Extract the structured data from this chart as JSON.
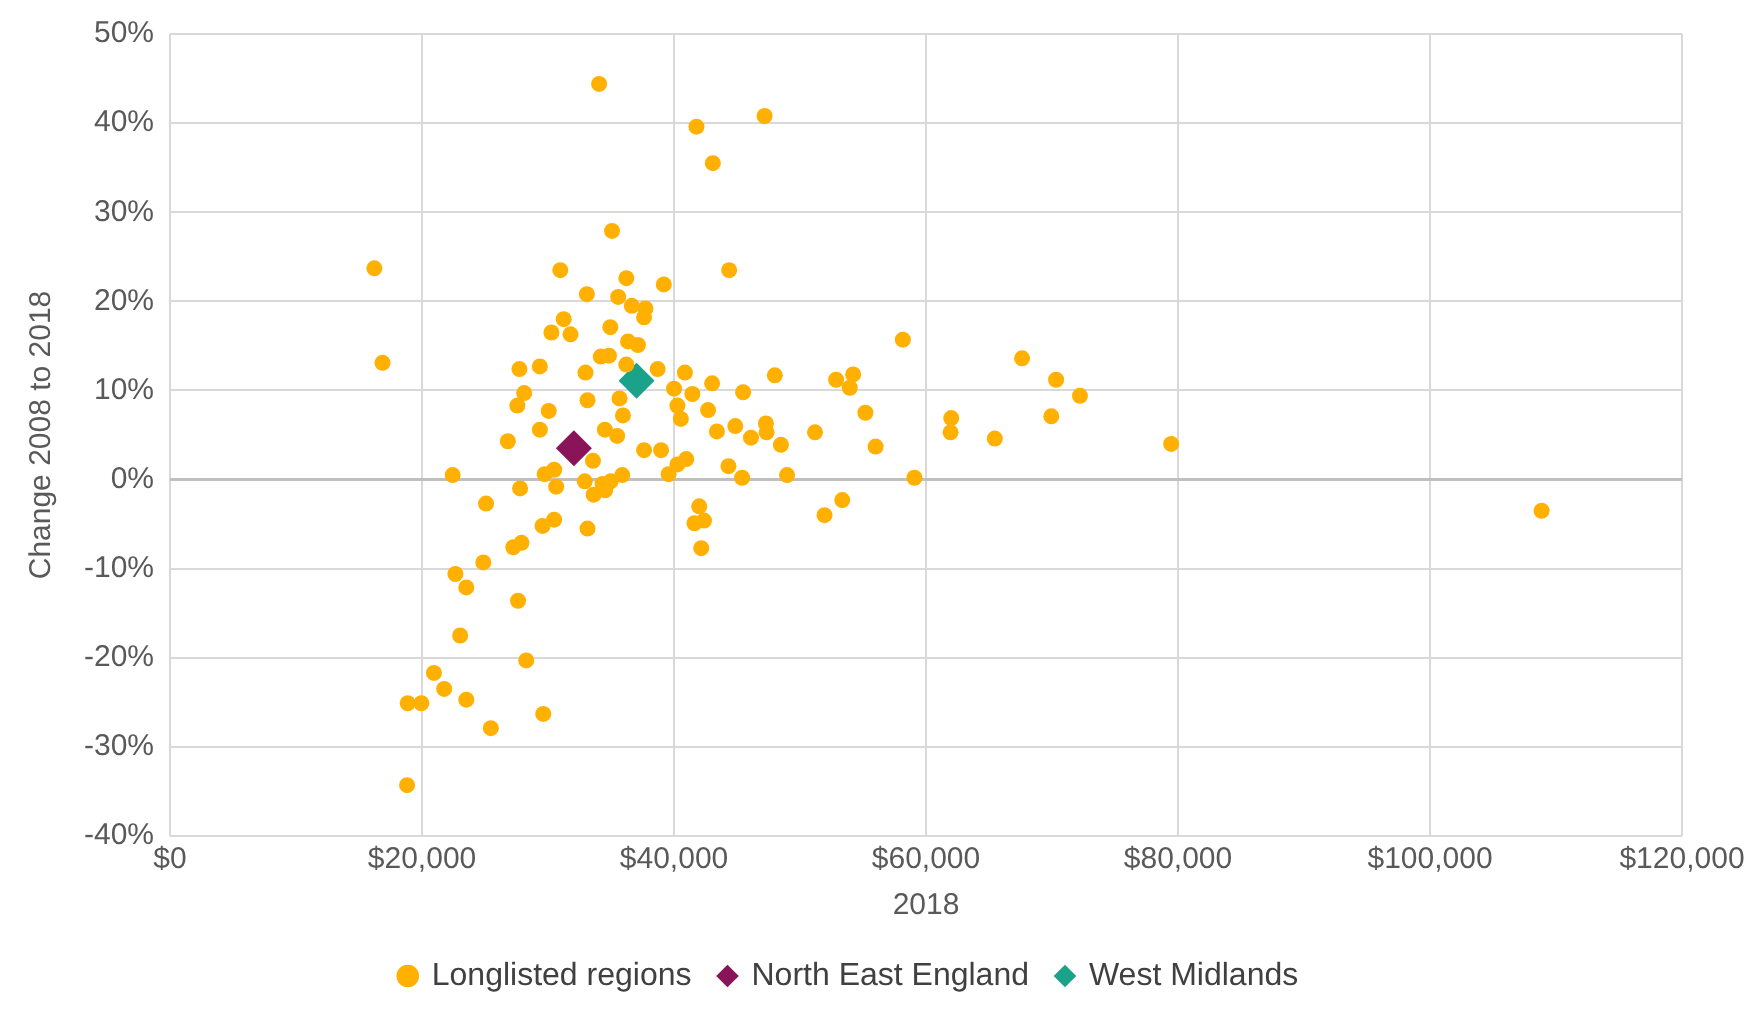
{
  "chart_data": {
    "type": "scatter",
    "xlabel": "2018",
    "ylabel": "Change 2008 to 2018",
    "xlim": [
      0,
      120000
    ],
    "xticks": [
      {
        "value": 0,
        "label": "$0"
      },
      {
        "value": 20000,
        "label": "$20,000"
      },
      {
        "value": 40000,
        "label": "$40,000"
      },
      {
        "value": 60000,
        "label": "$60,000"
      },
      {
        "value": 80000,
        "label": "$80,000"
      },
      {
        "value": 100000,
        "label": "$100,000"
      },
      {
        "value": 120000,
        "label": "$120,000"
      }
    ],
    "ylim": [
      -40,
      50
    ],
    "yticks": [
      {
        "value": -40,
        "label": "-40%"
      },
      {
        "value": -30,
        "label": "-30%"
      },
      {
        "value": -20,
        "label": "-20%"
      },
      {
        "value": -10,
        "label": "-10%"
      },
      {
        "value": 0,
        "label": "0%"
      },
      {
        "value": 10,
        "label": "10%"
      },
      {
        "value": 20,
        "label": "20%"
      },
      {
        "value": 30,
        "label": "30%"
      },
      {
        "value": 40,
        "label": "40%"
      },
      {
        "value": 50,
        "label": "50%"
      }
    ],
    "grid": true,
    "legend": "bottom",
    "series": [
      {
        "name": "Longlisted regions",
        "color": "#ffb000",
        "marker": "circle",
        "x": [
          34053,
          41782,
          47187,
          43079,
          35080,
          16216,
          30972,
          44376,
          36216,
          39188,
          33081,
          35567,
          36648,
          37729,
          37621,
          31243,
          30270,
          31784,
          34944,
          36350,
          37135,
          16865,
          34188,
          34837,
          27729,
          29351,
          32973,
          36216,
          38700,
          40863,
          43025,
          47998,
          28107,
          33135,
          35675,
          40000,
          41457,
          45484,
          27567,
          30054,
          35945,
          29351,
          40270,
          40540,
          42701,
          43403,
          44862,
          47295,
          47349,
          46106,
          48484,
          34512,
          35486,
          26810,
          33567,
          37621,
          38972,
          40972,
          40270,
          39568,
          44321,
          45403,
          48970,
          22432,
          29730,
          30486,
          30648,
          32919,
          34324,
          34972,
          35891,
          33621,
          34540,
          27783,
          25080,
          42000,
          41620,
          42377,
          42160,
          30486,
          29567,
          33135,
          27892,
          27242,
          24864,
          22648,
          23513,
          27621,
          23027,
          28270,
          20946,
          21757,
          23513,
          18865,
          19946,
          25459,
          29621,
          18811,
          58162,
          67621,
          70324,
          72216,
          69945,
          62000,
          61946,
          65459,
          79458,
          59081,
          56000,
          55189,
          51190,
          52866,
          54217,
          53946,
          53351,
          51946,
          108857
        ],
        "values": [
          44.4,
          39.6,
          40.8,
          35.5,
          27.9,
          23.7,
          23.5,
          23.5,
          22.6,
          21.9,
          20.8,
          20.5,
          19.5,
          19.2,
          18.2,
          18.0,
          16.5,
          16.3,
          17.1,
          15.5,
          15.1,
          13.1,
          13.8,
          13.9,
          12.4,
          12.7,
          12.0,
          12.9,
          12.4,
          12.0,
          10.8,
          11.7,
          9.7,
          8.9,
          9.1,
          10.2,
          9.6,
          9.8,
          8.3,
          7.7,
          7.2,
          5.6,
          8.3,
          6.8,
          7.8,
          5.4,
          6.0,
          6.3,
          5.3,
          4.7,
          3.9,
          5.6,
          4.9,
          4.3,
          2.1,
          3.3,
          3.3,
          2.3,
          1.7,
          0.6,
          1.5,
          0.2,
          0.5,
          0.5,
          0.6,
          1.1,
          -0.8,
          -0.2,
          -0.5,
          -0.2,
          0.5,
          -1.7,
          -1.2,
          -1.0,
          -2.7,
          -3.0,
          -4.9,
          -4.6,
          -7.7,
          -4.5,
          -5.2,
          -5.5,
          -7.1,
          -7.6,
          -9.3,
          -10.6,
          -12.1,
          -13.6,
          -17.5,
          -20.3,
          -21.7,
          -23.5,
          -24.7,
          -25.1,
          -25.1,
          -27.9,
          -26.3,
          -34.3,
          15.7,
          13.6,
          11.2,
          9.4,
          7.1,
          6.9,
          5.3,
          4.6,
          4.0,
          0.2,
          3.7,
          7.5,
          5.3,
          11.2,
          11.8,
          10.3,
          -2.3,
          -4.0,
          -3.5
        ]
      },
      {
        "name": "North East England",
        "color": "#8a1459",
        "marker": "diamond",
        "x": [
          32053
        ],
        "values": [
          3.5
        ]
      },
      {
        "name": "West Midlands",
        "color": "#1aa38a",
        "marker": "diamond",
        "x": [
          37026
        ],
        "values": [
          11.1
        ]
      }
    ]
  }
}
